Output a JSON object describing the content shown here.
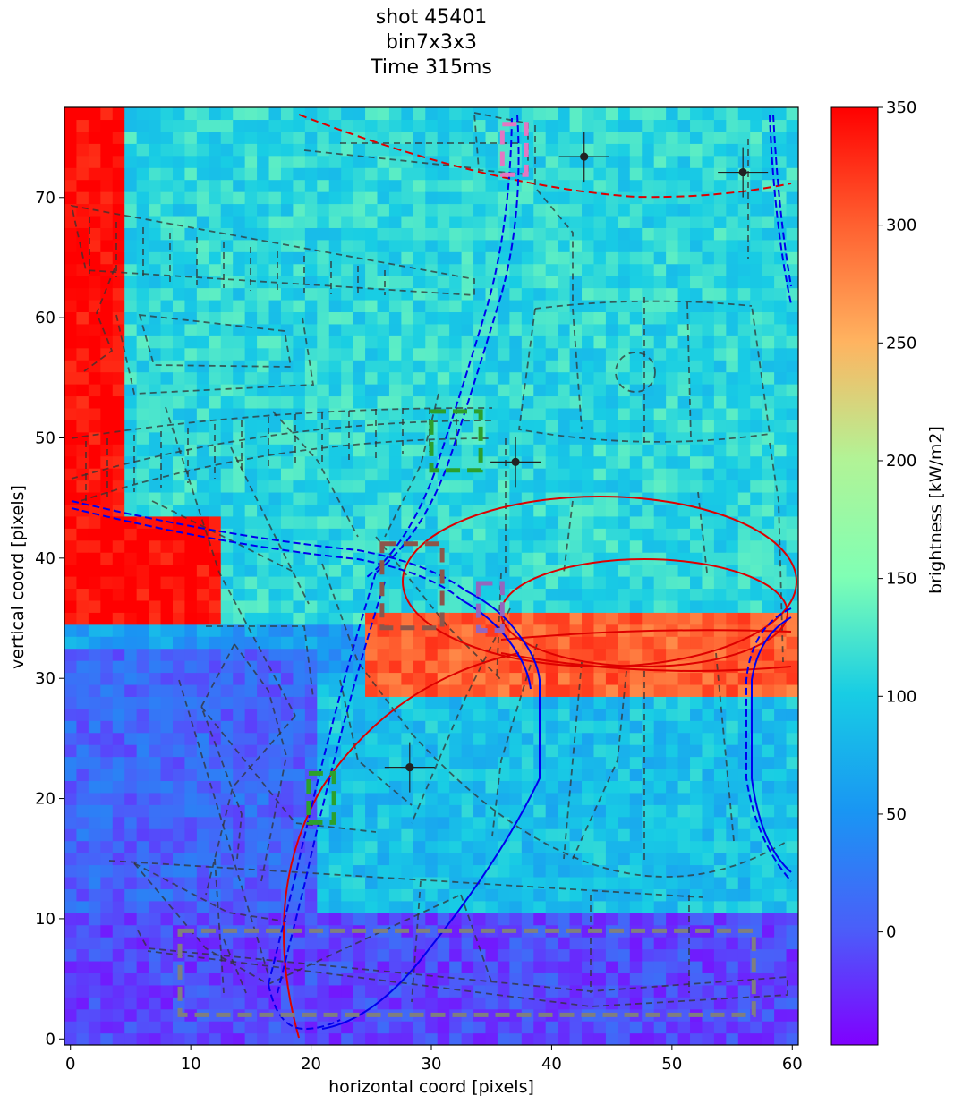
{
  "title_lines": [
    "shot 45401",
    "bin7x3x3",
    "Time 315ms"
  ],
  "chart_data": {
    "type": "heatmap",
    "xlabel": "horizontal coord [pixels]",
    "ylabel": "vertical coord [pixels]",
    "xlim": [
      -0.5,
      60.5
    ],
    "ylim": [
      -0.5,
      77.5
    ],
    "x_ticks": [
      0,
      10,
      20,
      30,
      40,
      50,
      60
    ],
    "y_ticks": [
      0,
      10,
      20,
      30,
      40,
      50,
      60,
      70
    ],
    "colorbar": {
      "label": "brightness [kW/m2]",
      "range": [
        -48,
        350
      ],
      "ticks": [
        0,
        50,
        100,
        150,
        200,
        250,
        300,
        350
      ],
      "colormap": "rainbow"
    },
    "grid": false,
    "regions": [
      {
        "name": "upper-left edge",
        "x": [
          0,
          4
        ],
        "y": [
          35,
          77
        ],
        "value": 350
      },
      {
        "name": "left hot block",
        "x": [
          0,
          12
        ],
        "y": [
          35,
          43
        ],
        "value": 350
      },
      {
        "name": "hot band",
        "x": [
          25,
          60
        ],
        "y": [
          29,
          35
        ],
        "value": 300
      },
      {
        "name": "upper field",
        "x": [
          5,
          60
        ],
        "y": [
          35,
          77
        ],
        "value": 110
      },
      {
        "name": "lower-left field",
        "x": [
          0,
          20
        ],
        "y": [
          0,
          32
        ],
        "value": 10
      },
      {
        "name": "lower-right field",
        "x": [
          20,
          60
        ],
        "y": [
          10,
          30
        ],
        "value": 90
      },
      {
        "name": "bottom strip",
        "x": [
          0,
          60
        ],
        "y": [
          0,
          10
        ],
        "value": -10
      }
    ],
    "markers": [
      {
        "x": 42.7,
        "y": 73.4
      },
      {
        "x": 55.9,
        "y": 72.1
      },
      {
        "x": 37.0,
        "y": 48.0
      },
      {
        "x": 28.2,
        "y": 22.6
      }
    ],
    "boxes": [
      {
        "color": "#e377c2",
        "x": [
          35.9,
          37.9
        ],
        "y": [
          71.9,
          76.1
        ]
      },
      {
        "color": "#2ca02c",
        "x": [
          30.0,
          34.1
        ],
        "y": [
          47.3,
          52.2
        ]
      },
      {
        "color": "#8c564b",
        "x": [
          25.9,
          30.9
        ],
        "y": [
          34.2,
          41.2
        ]
      },
      {
        "color": "#9467bd",
        "x": [
          33.9,
          35.9
        ],
        "y": [
          34.0,
          37.9
        ]
      },
      {
        "color": "#2ca02c",
        "x": [
          19.8,
          21.9
        ],
        "y": [
          18.0,
          22.1
        ]
      },
      {
        "color": "#7f7f7f",
        "x": [
          9.1,
          56.8
        ],
        "y": [
          2.0,
          9.0
        ]
      }
    ]
  }
}
